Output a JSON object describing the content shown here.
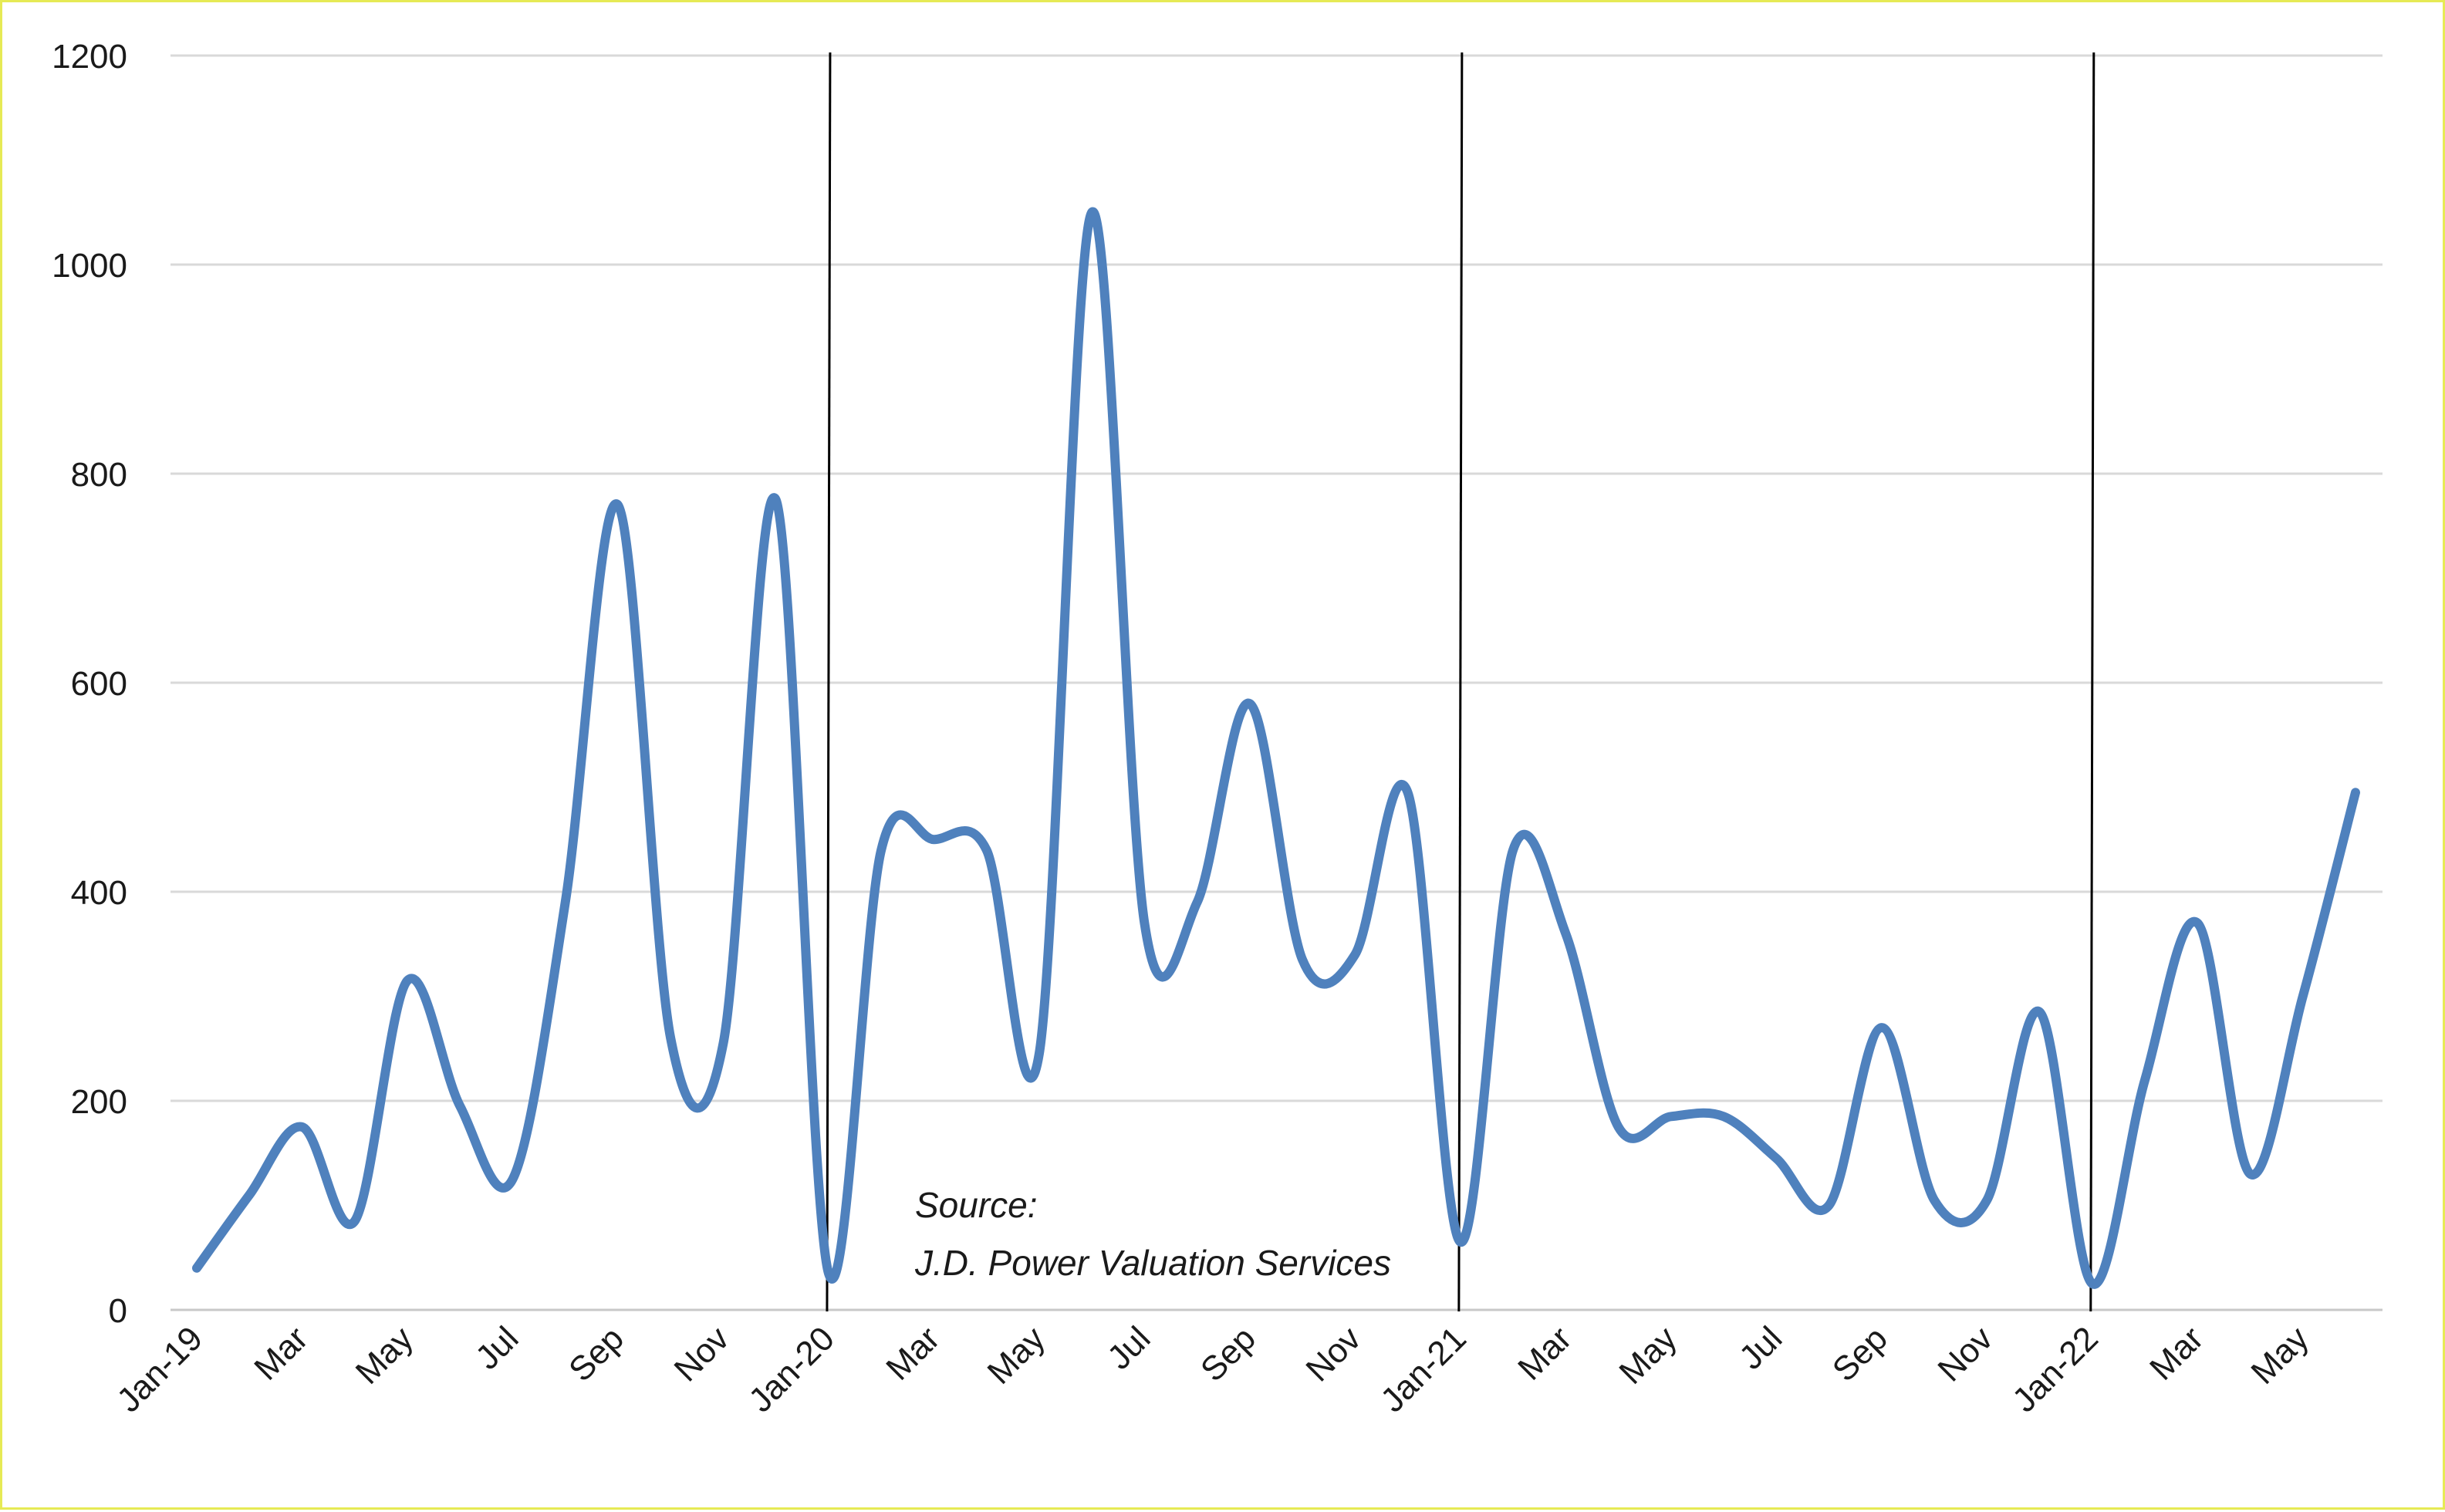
{
  "chart_data": {
    "type": "line",
    "title": "",
    "xlabel": "",
    "ylabel": "",
    "ylim": [
      0,
      1200
    ],
    "yticks": [
      0,
      200,
      400,
      600,
      800,
      1000,
      1200
    ],
    "grid": true,
    "legend": "none",
    "line_color": "#4f81bd",
    "x": [
      "Jan-19",
      "Feb-19",
      "Mar-19",
      "Apr-19",
      "May-19",
      "Jun-19",
      "Jul-19",
      "Aug-19",
      "Sep-19",
      "Oct-19",
      "Nov-19",
      "Dec-19",
      "Jan-20",
      "Feb-20",
      "Mar-20",
      "Apr-20",
      "May-20",
      "Jun-20",
      "Jul-20",
      "Aug-20",
      "Sep-20",
      "Oct-20",
      "Nov-20",
      "Dec-20",
      "Jan-21",
      "Feb-21",
      "Mar-21",
      "Apr-21",
      "May-21",
      "Jun-21",
      "Jul-21",
      "Aug-21",
      "Sep-21",
      "Oct-21",
      "Nov-21",
      "Dec-21",
      "Jan-22",
      "Feb-22",
      "Mar-22",
      "Apr-22",
      "May-22",
      "Jun-22"
    ],
    "x_tick_labels": [
      "Jan-19",
      "",
      "Mar",
      "",
      "May",
      "",
      "Jul",
      "",
      "Sep",
      "",
      "Nov",
      "",
      "Jan-20",
      "",
      "Mar",
      "",
      "May",
      "",
      "Jul",
      "",
      "Sep",
      "",
      "Nov",
      "",
      "Jan-21",
      "",
      "Mar",
      "",
      "May",
      "",
      "Jul",
      "",
      "Sep",
      "",
      "Nov",
      "",
      "Jan-22",
      "",
      "Mar",
      "",
      "May",
      ""
    ],
    "series": [
      {
        "values": [
          40,
          110,
          175,
          85,
          315,
          195,
          125,
          390,
          770,
          260,
          255,
          775,
          35,
          440,
          450,
          440,
          245,
          1050,
          370,
          390,
          580,
          335,
          340,
          495,
          65,
          440,
          360,
          175,
          185,
          185,
          145,
          100,
          270,
          105,
          105,
          285,
          25,
          220,
          370,
          130,
          300,
          495
        ]
      }
    ],
    "vertical_lines_at": [
      "Jan-20",
      "Jan-21",
      "Jan-22"
    ],
    "annotations": [
      "Source:",
      "J.D. Power Valuation Services"
    ]
  }
}
